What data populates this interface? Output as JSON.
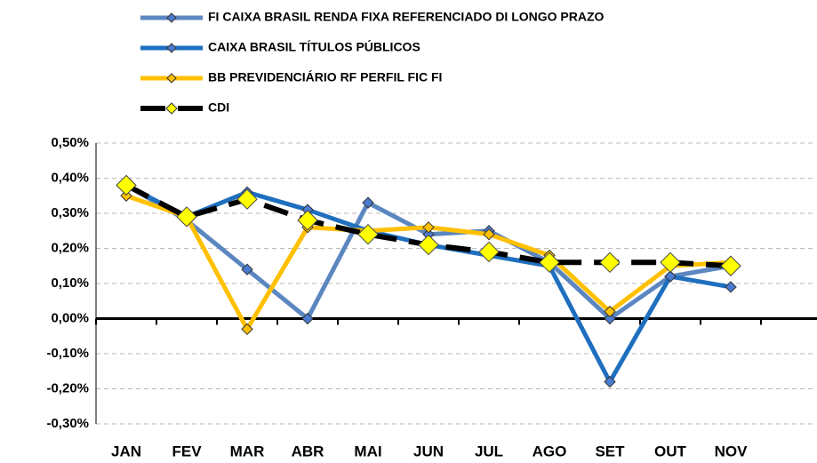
{
  "chart_data": {
    "type": "line",
    "categories": [
      "JAN",
      "FEV",
      "MAR",
      "ABR",
      "MAI",
      "JUN",
      "JUL",
      "AGO",
      "SET",
      "OUT",
      "NOV"
    ],
    "series": [
      {
        "name": "FI CAIXA BRASIL RENDA FIXA REFERENCIADO DI LONGO PRAZO",
        "color": "#5b86c0",
        "marker_color": "#4a7bd0",
        "dashed": false,
        "values": [
          0.38,
          0.28,
          0.14,
          0.0,
          0.33,
          0.24,
          0.25,
          0.16,
          0.0,
          0.12,
          0.15
        ]
      },
      {
        "name": "CAIXA BRASIL TÍTULOS PÚBLICOS",
        "color": "#1f6fbf",
        "marker_color": "#4a7bd0",
        "dashed": false,
        "values": [
          0.38,
          0.29,
          0.36,
          0.31,
          0.25,
          0.21,
          0.18,
          0.15,
          -0.18,
          0.12,
          0.09
        ]
      },
      {
        "name": "BB PREVIDENCIÁRIO RF PERFIL FIC FI",
        "color": "#ffc000",
        "marker_color": "#ffc000",
        "dashed": false,
        "values": [
          0.35,
          0.29,
          -0.03,
          0.26,
          0.25,
          0.26,
          0.24,
          0.18,
          0.02,
          0.15,
          0.16
        ]
      },
      {
        "name": "CDI",
        "color": "#000000",
        "marker_color": "#ffff00",
        "dashed": true,
        "values": [
          0.38,
          0.29,
          0.34,
          0.28,
          0.24,
          0.21,
          0.19,
          0.16,
          0.16,
          0.16,
          0.15
        ]
      }
    ],
    "ylim": [
      -0.3,
      0.5
    ],
    "yticks": [
      {
        "value": -0.3,
        "label": "-0,30%"
      },
      {
        "value": -0.2,
        "label": "-0,20%"
      },
      {
        "value": -0.1,
        "label": "-0,10%"
      },
      {
        "value": 0,
        "label": "0,00%"
      },
      {
        "value": 0.1,
        "label": "0,10%"
      },
      {
        "value": 0.2,
        "label": "0,20%"
      },
      {
        "value": 0.3,
        "label": "0,30%"
      },
      {
        "value": 0.4,
        "label": "0,40%"
      },
      {
        "value": 0.5,
        "label": "0,50%"
      }
    ],
    "grid": true
  }
}
